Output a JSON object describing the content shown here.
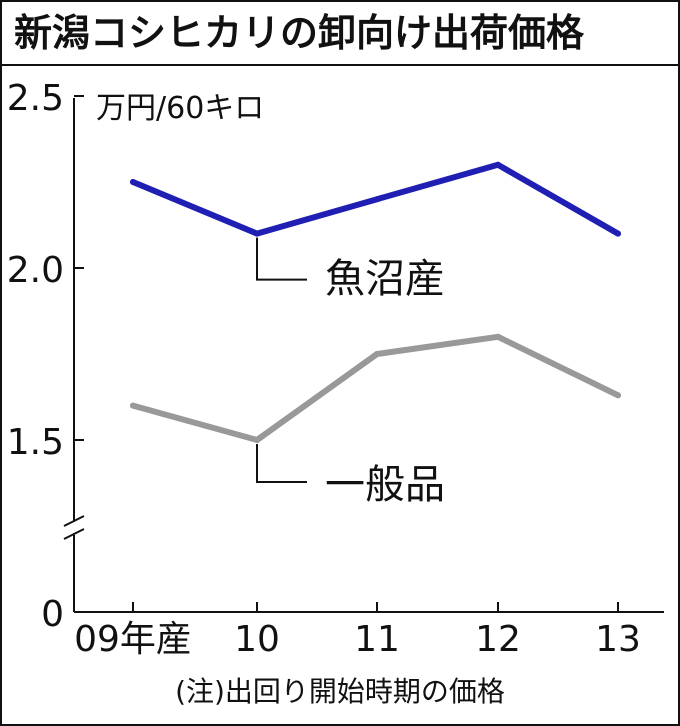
{
  "chart_data": {
    "type": "line",
    "title": "新潟コシヒカリの卸向け出荷価格",
    "unit": "万円/60キロ",
    "note": "(注)出回り開始時期の価格",
    "categories": [
      "09年産",
      "10",
      "11",
      "12",
      "13"
    ],
    "y_ticks": [
      "2.5",
      "2.0",
      "1.5",
      "0"
    ],
    "ylim": [
      1.5,
      2.5
    ],
    "axis_break": true,
    "grid": false,
    "series": [
      {
        "name": "魚沼産",
        "color": "#1f1fb4",
        "values": [
          2.25,
          2.1,
          2.2,
          2.3,
          2.1
        ]
      },
      {
        "name": "一般品",
        "color": "#999999",
        "values": [
          1.6,
          1.5,
          1.75,
          1.8,
          1.63
        ]
      }
    ]
  }
}
